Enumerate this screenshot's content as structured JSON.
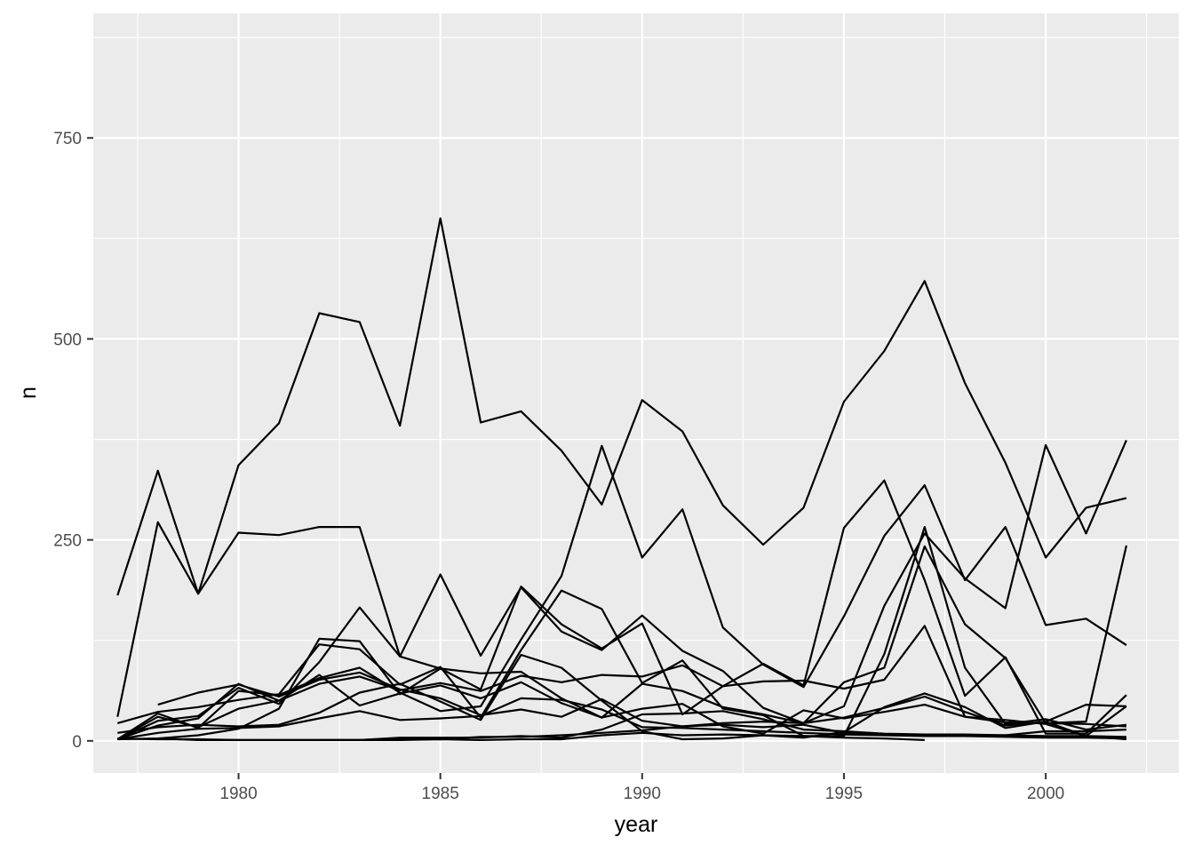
{
  "chart_data": {
    "type": "line",
    "title": "",
    "xlabel": "year",
    "ylabel": "n",
    "xlim": [
      1976.4,
      2003.3
    ],
    "ylim": [
      -40,
      905
    ],
    "x_ticks": [
      1980,
      1985,
      1990,
      1995,
      2000
    ],
    "x_tick_labels": [
      "1980",
      "1985",
      "1990",
      "1995",
      "2000"
    ],
    "y_ticks": [
      0,
      250,
      500,
      750
    ],
    "y_tick_labels": [
      "0",
      "250",
      "500",
      "750"
    ],
    "grid": true,
    "legend": "none",
    "colors": {
      "panel": "#ebebeb",
      "grid": "#ffffff",
      "line": "#000000"
    },
    "series": [
      {
        "x": [
          1977,
          1978,
          1979,
          1980,
          1981,
          1982,
          1983,
          1984,
          1985,
          1986,
          1987,
          1988,
          1989,
          1990,
          1991,
          1992,
          1993,
          1994,
          1995,
          1996,
          1997,
          1998,
          1999,
          2000,
          2001,
          2002
        ],
        "values": [
          181,
          336,
          183,
          343,
          395,
          532,
          521,
          392,
          650,
          396,
          410,
          361,
          294,
          424,
          385,
          293,
          244,
          290,
          422,
          485,
          572,
          445,
          346,
          228,
          290,
          302
        ]
      },
      {
        "x": [
          1977,
          1978,
          1979,
          1980,
          1981,
          1982,
          1983,
          1984,
          1985,
          1986,
          1987,
          1988,
          1989,
          1990,
          1991,
          1992,
          1993,
          1994,
          1995,
          1996,
          1997,
          1998,
          1999,
          2000,
          2001,
          2002
        ],
        "values": [
          30,
          272,
          183,
          259,
          256,
          266,
          266,
          105,
          207,
          106,
          191,
          136,
          113,
          156,
          112,
          87,
          41,
          22,
          43,
          168,
          258,
          202,
          165,
          368,
          258,
          374
        ]
      },
      {
        "x": [
          1977,
          1978,
          1979,
          1980,
          1981,
          1982,
          1983,
          1984,
          1985,
          1986,
          1987,
          1988,
          1989,
          1990,
          1991,
          1992,
          1993,
          1994,
          1995,
          1996,
          1997,
          1998,
          1999,
          2000,
          2001,
          2002
        ],
        "values": [
          2,
          34,
          16,
          62,
          57,
          78,
          91,
          60,
          37,
          43,
          126,
          205,
          367,
          228,
          288,
          141,
          95,
          67,
          155,
          255,
          318,
          200,
          266,
          144,
          152,
          119
        ]
      },
      {
        "x": [
          1977,
          1978,
          1979,
          1980,
          1981,
          1982,
          1983,
          1984,
          1985,
          1986,
          1987,
          1988,
          1989,
          1990,
          1991,
          1992,
          1993,
          1994,
          1995,
          1996,
          1997,
          1998,
          1999,
          2000,
          2001,
          2002
        ],
        "values": [
          2,
          3,
          7,
          15,
          40,
          127,
          124,
          58,
          90,
          84,
          86,
          53,
          29,
          71,
          62,
          42,
          33,
          22,
          73,
          91,
          242,
          145,
          103,
          22,
          24,
          243
        ]
      },
      {
        "x": [
          1977,
          1978,
          1979,
          1980,
          1981,
          1982,
          1983,
          1984,
          1985,
          1986,
          1987,
          1988,
          1989,
          1990,
          1991,
          1992,
          1993,
          1994,
          1995,
          1996,
          1997,
          1998,
          1999,
          2000,
          2001,
          2002
        ],
        "values": [
          22,
          36,
          42,
          51,
          58,
          120,
          114,
          70,
          92,
          29,
          113,
          187,
          164,
          72,
          100,
          40,
          32,
          6,
          6,
          108,
          266,
          91,
          21,
          27,
          14,
          20
        ]
      },
      {
        "x": [
          1977,
          1978,
          1979,
          1980,
          1981,
          1982,
          1983,
          1984,
          1985,
          1986,
          1987,
          1988,
          1989,
          1990,
          1991,
          1992,
          1993,
          1994,
          1995,
          1996,
          1997,
          1998,
          1999,
          2000,
          2001,
          2002
        ],
        "values": [
          2,
          25,
          31,
          66,
          46,
          98,
          166,
          105,
          90,
          64,
          192,
          145,
          115,
          146,
          33,
          68,
          96,
          69,
          265,
          324,
          200,
          56,
          104,
          9,
          9,
          57
        ]
      },
      {
        "x": [
          1977,
          1978,
          1979,
          1980,
          1981,
          1982,
          1983,
          1984,
          1985,
          1986,
          1987,
          1988,
          1989,
          1990,
          1991,
          1992,
          1993,
          1994,
          1995,
          1996,
          1997,
          1998,
          1999,
          2000,
          2001,
          2002
        ],
        "values": [
          2,
          19,
          28,
          71,
          50,
          82,
          44,
          59,
          69,
          53,
          73,
          47,
          29,
          40,
          46,
          18,
          9,
          38,
          28,
          36,
          45,
          30,
          26,
          21,
          6,
          43
        ]
      },
      {
        "x": [
          1977,
          1978,
          1979,
          1980,
          1981,
          1982,
          1983,
          1984,
          1985,
          1986,
          1987,
          1988,
          1989,
          1990,
          1991,
          1992,
          1993,
          1994,
          1995,
          1996,
          1997,
          1998,
          1999,
          2000,
          2001,
          2002
        ],
        "values": [
          10,
          17,
          20,
          18,
          20,
          35,
          60,
          71,
          49,
          26,
          107,
          91,
          50,
          12,
          2,
          3,
          7,
          4,
          11,
          42,
          59,
          42,
          16,
          24,
          45,
          43
        ]
      },
      {
        "x": [
          1977,
          1978,
          1979,
          1980,
          1981,
          1982,
          1983,
          1984,
          1985,
          1986,
          1987,
          1988,
          1989,
          1990,
          1991,
          1992,
          1993,
          1994,
          1995,
          1996,
          1997,
          1998,
          1999,
          2000,
          2001,
          2002
        ],
        "values": [
          2,
          30,
          17,
          40,
          50,
          71,
          80,
          63,
          72,
          62,
          81,
          73,
          82,
          80,
          94,
          68,
          74,
          75,
          65,
          76,
          143,
          30,
          23,
          22,
          21,
          18
        ]
      },
      {
        "x": [
          1977,
          1978,
          1979,
          1980,
          1981,
          1982,
          1983,
          1984,
          1985,
          1986,
          1987,
          1988,
          1989,
          1990,
          1991,
          1992,
          1993,
          1994,
          1995,
          1996,
          1997,
          1998,
          1999,
          2000,
          2001,
          2002
        ],
        "values": [
          3,
          2,
          2,
          1,
          1,
          1,
          1,
          2,
          2,
          5,
          5,
          7,
          10,
          13,
          18,
          22,
          24,
          22,
          29,
          41,
          55,
          36,
          19,
          24,
          6,
          5
        ]
      },
      {
        "x": [
          1978,
          1979,
          1980,
          1981,
          1982,
          1983,
          1984,
          1985,
          1986,
          1987,
          1988,
          1989,
          1990,
          1991,
          1992,
          1993,
          1994,
          1995,
          1996,
          1997,
          1998,
          1999,
          2000,
          2001,
          2002
        ],
        "values": [
          45,
          60,
          70,
          55,
          76,
          85,
          64,
          53,
          32,
          39,
          30,
          52,
          25,
          18,
          20,
          17,
          20,
          10,
          8,
          8,
          8,
          7,
          6,
          6,
          2
        ]
      },
      {
        "x": [
          1978,
          1979,
          1980,
          1981,
          1982,
          1983,
          1984,
          1985,
          1986,
          1987,
          1988,
          1989,
          1990,
          1991,
          1992,
          1993,
          1994,
          1995,
          1996,
          1997,
          1998,
          1999,
          2000,
          2001,
          2002
        ],
        "values": [
          3,
          1,
          1,
          1,
          1,
          1,
          4,
          4,
          4,
          6,
          4,
          14,
          33,
          34,
          37,
          27,
          14,
          12,
          9,
          8,
          7,
          7,
          12,
          12,
          14
        ]
      },
      {
        "x": [
          1982,
          1983,
          1984,
          1985,
          1986,
          1987,
          1988,
          1989,
          1990,
          1991,
          1992,
          1993,
          1994,
          1995,
          1996,
          1997
        ],
        "values": [
          1,
          1,
          1,
          2,
          1,
          2,
          2,
          7,
          10,
          7,
          8,
          7,
          6,
          4,
          3,
          1
        ]
      },
      {
        "x": [
          1977,
          1978,
          1979,
          1980,
          1981,
          1982,
          1983,
          1984,
          1985,
          1986,
          1987,
          1988,
          1989,
          1990,
          1991,
          1992,
          1993,
          1994,
          1995,
          1996,
          1997,
          1998,
          1999,
          2000,
          2001,
          2002
        ],
        "values": [
          2,
          10,
          15,
          16,
          18,
          28,
          37,
          26,
          28,
          31,
          53,
          51,
          39,
          17,
          16,
          14,
          12,
          10,
          8,
          7,
          6,
          6,
          5,
          4,
          4,
          3
        ]
      }
    ]
  }
}
